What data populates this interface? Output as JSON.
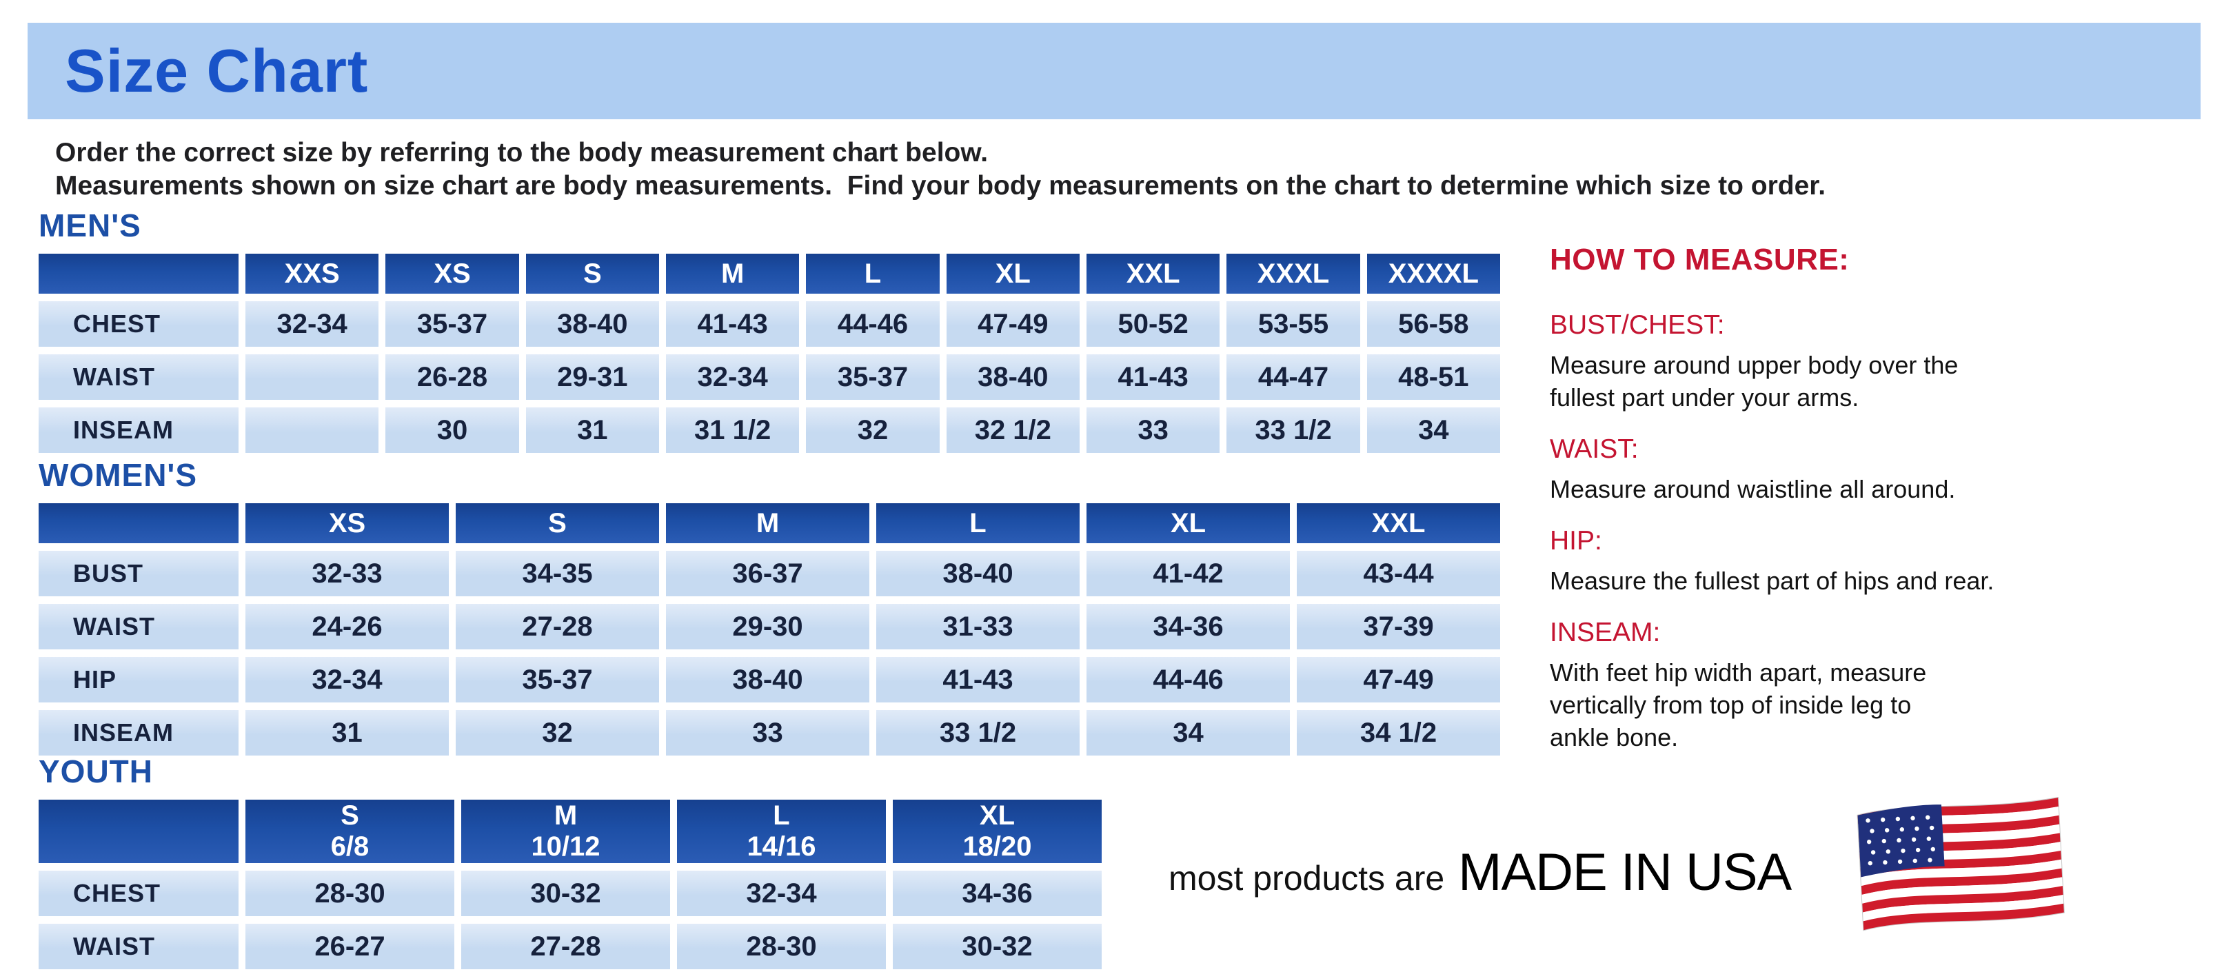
{
  "header": {
    "title": "Size Chart"
  },
  "intro": {
    "line1": "Order the correct size by referring to the body measurement chart below.",
    "line2": "Measurements shown on size chart are body measurements.  Find your body measurements on the chart to determine which size to order."
  },
  "tables": {
    "mens": {
      "heading": "MEN'S",
      "columns": [
        "",
        "XXS",
        "XS",
        "S",
        "M",
        "L",
        "XL",
        "XXL",
        "XXXL",
        "XXXXL"
      ],
      "rows": [
        {
          "label": "CHEST",
          "values": [
            "32-34",
            "35-37",
            "38-40",
            "41-43",
            "44-46",
            "47-49",
            "50-52",
            "53-55",
            "56-58"
          ]
        },
        {
          "label": "WAIST",
          "values": [
            "",
            "26-28",
            "29-31",
            "32-34",
            "35-37",
            "38-40",
            "41-43",
            "44-47",
            "48-51"
          ]
        },
        {
          "label": "INSEAM",
          "values": [
            "",
            "30",
            "31",
            "31 1/2",
            "32",
            "32 1/2",
            "33",
            "33 1/2",
            "34"
          ]
        }
      ]
    },
    "womens": {
      "heading": "WOMEN'S",
      "columns": [
        "",
        "XS",
        "S",
        "M",
        "L",
        "XL",
        "XXL"
      ],
      "rows": [
        {
          "label": "BUST",
          "values": [
            "32-33",
            "34-35",
            "36-37",
            "38-40",
            "41-42",
            "43-44"
          ]
        },
        {
          "label": "WAIST",
          "values": [
            "24-26",
            "27-28",
            "29-30",
            "31-33",
            "34-36",
            "37-39"
          ]
        },
        {
          "label": "HIP",
          "values": [
            "32-34",
            "35-37",
            "38-40",
            "41-43",
            "44-46",
            "47-49"
          ]
        },
        {
          "label": "INSEAM",
          "values": [
            "31",
            "32",
            "33",
            "33 1/2",
            "34",
            "34 1/2"
          ]
        }
      ]
    },
    "youth": {
      "heading": "YOUTH",
      "columns": [
        "",
        "S\n6/8",
        "M\n10/12",
        "L\n14/16",
        "XL\n18/20"
      ],
      "rows": [
        {
          "label": "CHEST",
          "values": [
            "28-30",
            "30-32",
            "32-34",
            "34-36"
          ]
        },
        {
          "label": "WAIST",
          "values": [
            "26-27",
            "27-28",
            "28-30",
            "30-32"
          ]
        }
      ]
    }
  },
  "howto": {
    "title": "HOW TO MEASURE:",
    "items": [
      {
        "label": "BUST/CHEST:",
        "text": "Measure around upper body over the\nfullest part under your arms."
      },
      {
        "label": "WAIST:",
        "text": "Measure around waistline all around."
      },
      {
        "label": "HIP:",
        "text": "Measure the fullest part of hips and rear."
      },
      {
        "label": "INSEAM:",
        "text": "With feet hip width apart, measure\nvertically from top of inside leg to\nankle bone."
      }
    ]
  },
  "footer": {
    "prefix": "most products are",
    "emphasis": "MADE IN USA",
    "flag_icon": "usa-flag-icon"
  },
  "colors": {
    "banner_bg": "#aecdf2",
    "title_blue": "#1953c8",
    "heading_blue": "#1c4fa6",
    "table_header_bg": "#1d4fa6",
    "cell_bg": "#c6daf1",
    "cell_text": "#16213c",
    "accent_red": "#c41431",
    "flag_red": "#cf1b2b",
    "flag_blue": "#20307c"
  }
}
